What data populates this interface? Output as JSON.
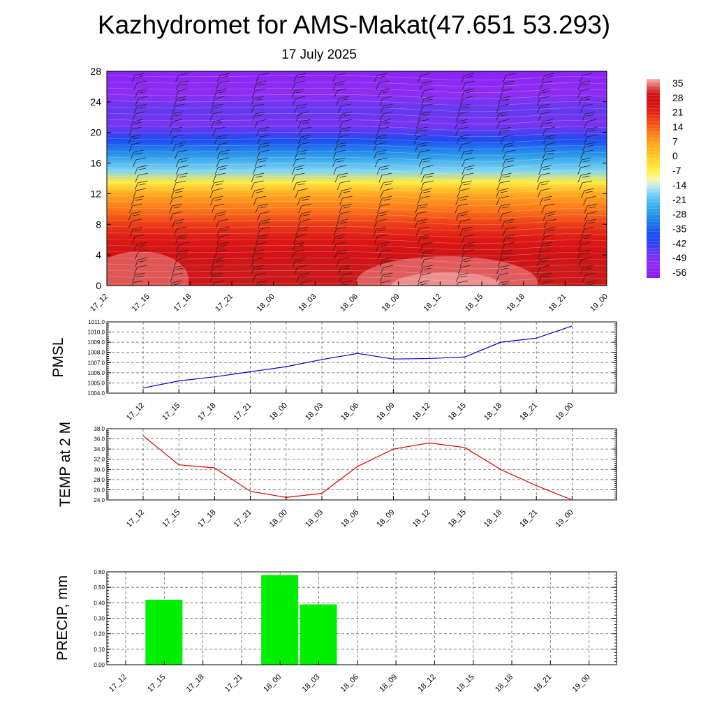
{
  "title": "Kazhydromet for AMS-Makat(47.651 53.293)",
  "subtitle": "17 July 2025",
  "time_labels": [
    "17_12",
    "17_15",
    "17_18",
    "17_21",
    "18_00",
    "18_03",
    "18_06",
    "18_09",
    "18_12",
    "18_15",
    "18_18",
    "18_21",
    "19_00"
  ],
  "chart_data": [
    {
      "type": "heatmap",
      "name": "Temperature cross-section with wind barbs",
      "y_ticks": [
        0,
        4,
        8,
        12,
        16,
        20,
        24,
        28
      ],
      "ylim": [
        0,
        28
      ],
      "colorbar": {
        "labels": [
          "35",
          "28",
          "21",
          "14",
          "7",
          "0",
          "-7",
          "-14",
          "-21",
          "-28",
          "-35",
          "-42",
          "-49",
          "-56"
        ],
        "range": [
          -63,
          38
        ]
      },
      "temperature_profile": [
        {
          "level": 0,
          "value": 30
        },
        {
          "level": 2,
          "value": 31
        },
        {
          "level": 4,
          "value": 28
        },
        {
          "level": 6,
          "value": 24
        },
        {
          "level": 8,
          "value": 18
        },
        {
          "level": 10,
          "value": 11
        },
        {
          "level": 12,
          "value": 4
        },
        {
          "level": 13.5,
          "value": -8
        },
        {
          "level": 15,
          "value": -20
        },
        {
          "level": 17,
          "value": -30
        },
        {
          "level": 19,
          "value": -42
        },
        {
          "level": 21,
          "value": -53
        },
        {
          "level": 23,
          "value": -50
        },
        {
          "level": 25,
          "value": -55
        },
        {
          "level": 28,
          "value": -60
        }
      ]
    },
    {
      "type": "line",
      "ylabel": "PMSL",
      "ylim": [
        1004.0,
        1011.0
      ],
      "y_ticks": [
        "1004.0",
        "1005.0",
        "1006.0",
        "1007.0",
        "1008.0",
        "1009.0",
        "1010.0",
        "1011.0"
      ],
      "color": "#0000cc",
      "values": [
        1004.5,
        1005.2,
        1005.6,
        1006.1,
        1006.6,
        1007.3,
        1007.9,
        1007.35,
        1007.4,
        1007.55,
        1009.0,
        1009.4,
        1010.6
      ]
    },
    {
      "type": "line",
      "ylabel": "TEMP at 2 M",
      "ylim": [
        24.0,
        38.0
      ],
      "y_ticks": [
        "24.0",
        "26.0",
        "28.0",
        "30.0",
        "32.0",
        "34.0",
        "36.0",
        "38.0"
      ],
      "color": "#dd0000",
      "values": [
        36.6,
        30.9,
        30.3,
        25.7,
        24.5,
        25.3,
        30.6,
        34.0,
        35.2,
        34.3,
        30.0,
        26.8,
        24.0
      ]
    },
    {
      "type": "bar",
      "ylabel": "PRECIP, mm",
      "ylim": [
        0.0,
        0.6
      ],
      "y_ticks": [
        "0.00",
        "0.10",
        "0.20",
        "0.30",
        "0.40",
        "0.50",
        "0.60"
      ],
      "color": "#00ee00",
      "values": [
        0,
        0.42,
        0,
        0,
        0.58,
        0.39,
        0,
        0,
        0,
        0,
        0,
        0,
        0
      ]
    }
  ]
}
